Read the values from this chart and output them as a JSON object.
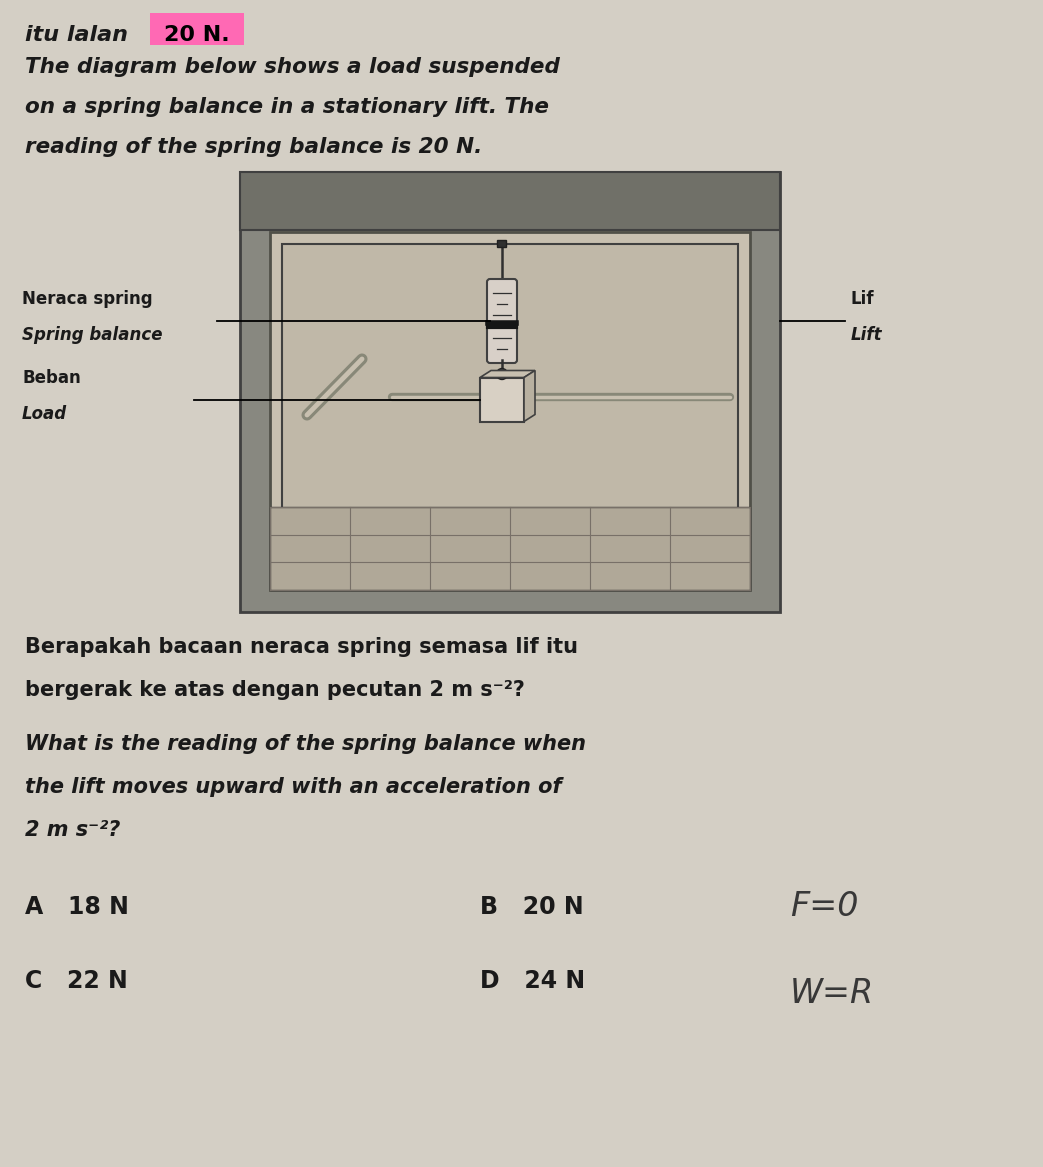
{
  "bg_color": "#e8e4dc",
  "page_bg": "#d4cfc5",
  "top_text_line1": "itu lalan ",
  "top_highlight": "20 N.",
  "intro_line1": "The diagram below shows a load suspended",
  "intro_line2": "on a spring balance in a stationary lift. The",
  "intro_line3": "reading of the spring balance is 20 N.",
  "label_spring_balance_ms": "Neraca spring",
  "label_spring_balance_en": "Spring balance",
  "label_load_ms": "Beban",
  "label_load_en": "Load",
  "label_lift_ms": "Lif",
  "label_lift_en": "Lift",
  "question_ms_line1": "Berapakah bacaan neraca spring semasa lif itu",
  "question_ms_line2": "bergerak ke atas dengan pecutan 2 m s⁻²?",
  "question_en_line1": "What is the reading of the spring balance when",
  "question_en_line2": "the lift moves upward with an acceleration of",
  "question_en_line3": "2 m s⁻²?",
  "option_A": "A   18 N",
  "option_B": "B   20 N",
  "option_C": "C   22 N",
  "option_D": "D   24 N",
  "handwritten1": "F=0",
  "handwritten2": "W=R",
  "lift_outer_color": "#888880",
  "lift_wall_color": "#b8b0a0",
  "lift_inner_wall": "#c8c0b0",
  "text_color": "#1a1a1a",
  "highlight_bg": "#ff69b4"
}
